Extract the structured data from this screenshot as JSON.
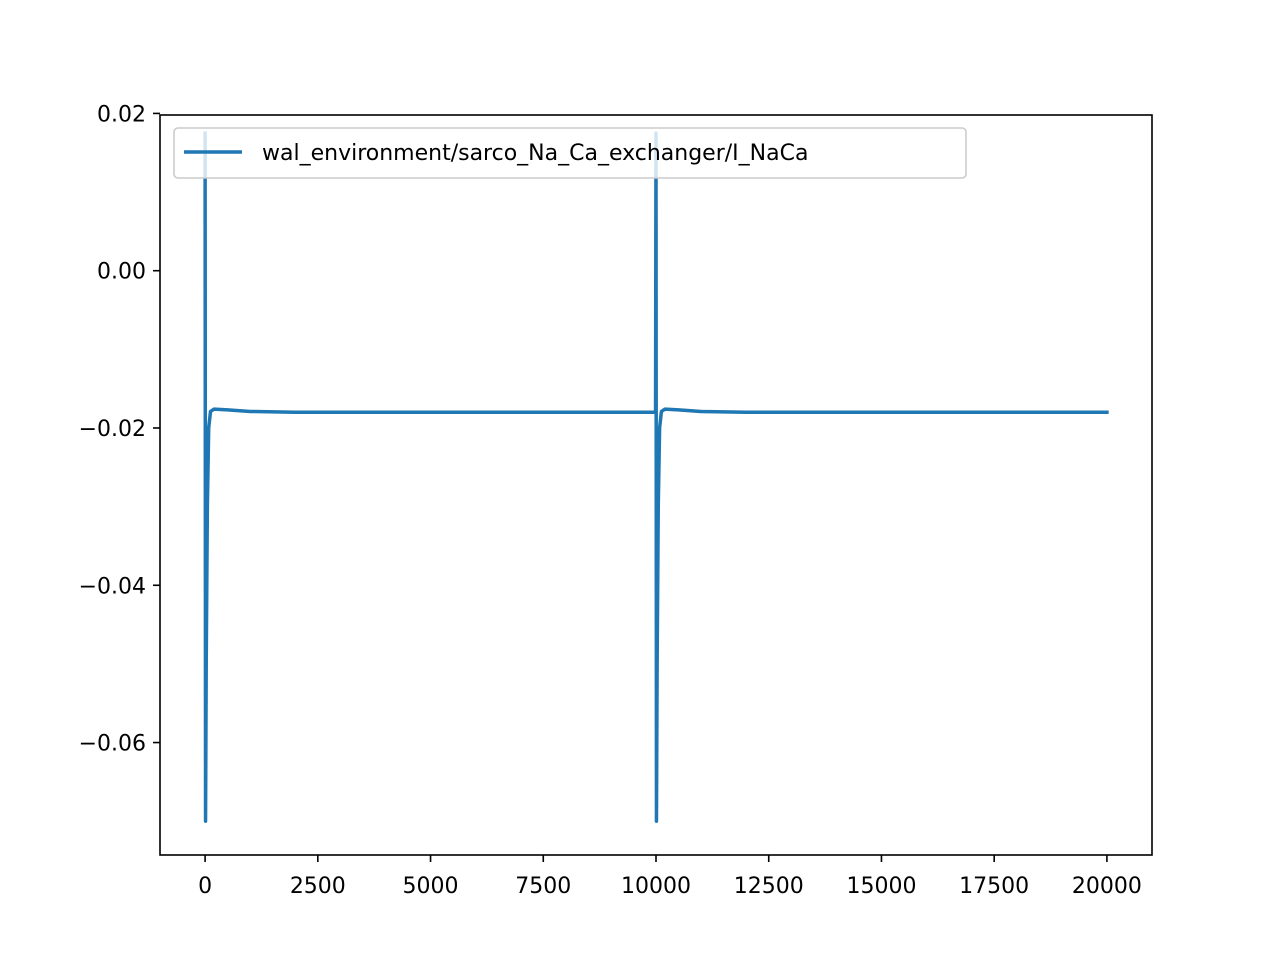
{
  "chart_data": {
    "type": "line",
    "title": "",
    "xlabel": "",
    "ylabel": "",
    "xlim": [
      -1000,
      21000
    ],
    "ylim": [
      -0.0743,
      0.0198
    ],
    "grid": false,
    "legend_position": "upper-left",
    "x_ticks": [
      {
        "value": 0,
        "label": "0"
      },
      {
        "value": 2500,
        "label": "2500"
      },
      {
        "value": 5000,
        "label": "5000"
      },
      {
        "value": 7500,
        "label": "7500"
      },
      {
        "value": 10000,
        "label": "10000"
      },
      {
        "value": 12500,
        "label": "12500"
      },
      {
        "value": 15000,
        "label": "15000"
      },
      {
        "value": 17500,
        "label": "17500"
      },
      {
        "value": 20000,
        "label": "20000"
      }
    ],
    "y_ticks": [
      {
        "value": 0.02,
        "label": "0.02"
      },
      {
        "value": 0.0,
        "label": "0.00"
      },
      {
        "value": -0.02,
        "label": "−0.02"
      },
      {
        "value": -0.04,
        "label": "−0.04"
      },
      {
        "value": -0.06,
        "label": "−0.06"
      }
    ],
    "series": [
      {
        "name": "wal_environment/sarco_Na_Ca_exchanger/I_NaCa",
        "color": "#1f77b4",
        "points": [
          [
            0,
            0.0175
          ],
          [
            10,
            -0.07
          ],
          [
            25,
            -0.05
          ],
          [
            50,
            -0.03
          ],
          [
            80,
            -0.02
          ],
          [
            120,
            -0.0179
          ],
          [
            200,
            -0.0176
          ],
          [
            500,
            -0.0177
          ],
          [
            1000,
            -0.0179
          ],
          [
            2000,
            -0.018
          ],
          [
            5000,
            -0.018
          ],
          [
            9990,
            -0.018
          ],
          [
            10000,
            0.0175
          ],
          [
            10010,
            -0.07
          ],
          [
            10025,
            -0.05
          ],
          [
            10050,
            -0.03
          ],
          [
            10080,
            -0.02
          ],
          [
            10120,
            -0.0179
          ],
          [
            10200,
            -0.0176
          ],
          [
            10500,
            -0.0177
          ],
          [
            11000,
            -0.0179
          ],
          [
            12000,
            -0.018
          ],
          [
            15000,
            -0.018
          ],
          [
            20000,
            -0.018
          ]
        ]
      }
    ]
  }
}
